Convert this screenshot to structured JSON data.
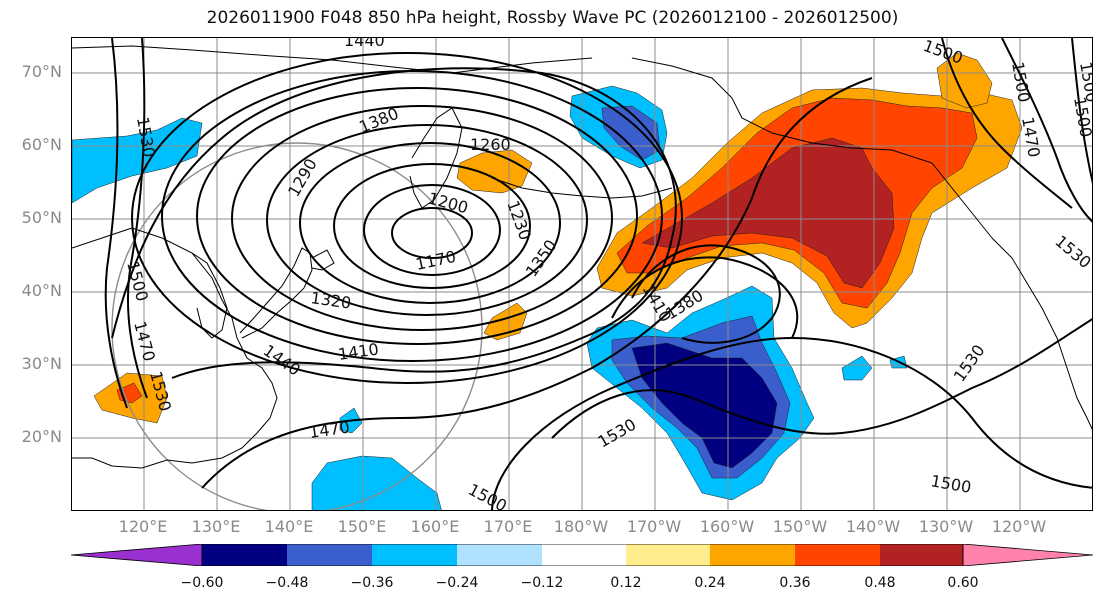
{
  "title": "2026011900 F048 850 hPa height, Rossby Wave PC (2026012100 - 2026012500)",
  "latitude_labels": [
    "70°N",
    "60°N",
    "50°N",
    "40°N",
    "30°N",
    "20°N"
  ],
  "longitude_labels": [
    "120°E",
    "130°E",
    "140°E",
    "150°E",
    "160°E",
    "170°E",
    "180°W",
    "170°W",
    "160°W",
    "150°W",
    "140°W",
    "130°W",
    "120°W"
  ],
  "contour_labels": [
    "1440",
    "1500",
    "1380",
    "1260",
    "1290",
    "1200",
    "1230",
    "1350",
    "1170",
    "1320",
    "1410",
    "1440",
    "1470",
    "1500",
    "1530",
    "1530",
    "1500",
    "1380",
    "1410",
    "1470",
    "1500",
    "1530",
    "1530",
    "1500",
    "1470",
    "1530",
    "1500",
    "1500"
  ],
  "colorbar": {
    "colors": [
      "#9b30d0",
      "#000080",
      "#3a5fcd",
      "#00bfff",
      "#b0e2ff",
      "#ffffff",
      "#ffec8b",
      "#ffa500",
      "#ff4500",
      "#b22222",
      "#ff82ab"
    ],
    "tick_labels": [
      "−0.60",
      "−0.48",
      "−0.36",
      "−0.24",
      "−0.12",
      "0.12",
      "0.24",
      "0.36",
      "0.48",
      "0.60"
    ]
  },
  "fill_colors": {
    "neg_light": "#00bfff",
    "neg_mid": "#3a5fcd",
    "neg_dark": "#000080",
    "pos_light": "#ffa500",
    "pos_mid": "#ff4500",
    "pos_dark": "#b22222"
  }
}
